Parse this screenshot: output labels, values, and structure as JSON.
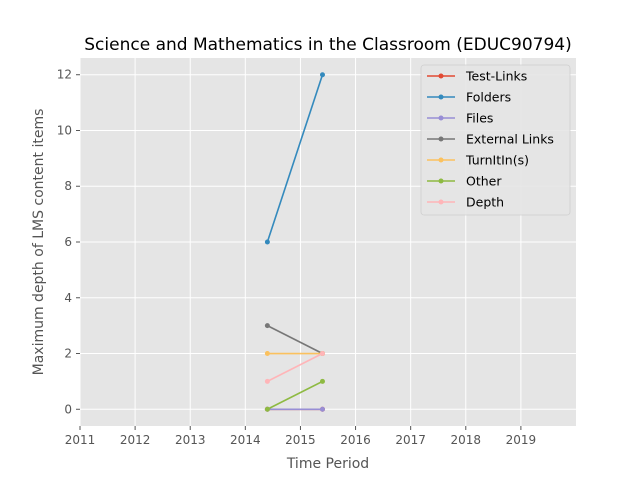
{
  "chart_data": {
    "type": "line",
    "title": "Science and Mathematics in the Classroom (EDUC90794)",
    "xlabel": "Time Period",
    "ylabel": "Maximum depth of LMS content items",
    "xlim": [
      2011,
      2020
    ],
    "ylim": [
      -0.6,
      12.6
    ],
    "xticks": [
      2011,
      2012,
      2013,
      2014,
      2015,
      2016,
      2017,
      2018,
      2019
    ],
    "yticks": [
      0,
      2,
      4,
      6,
      8,
      10,
      12
    ],
    "grid": true,
    "legend_position": "top-right",
    "series": [
      {
        "name": "Test-Links",
        "color": "#E24A33",
        "x": [
          2014.4,
          2015.4
        ],
        "y": [
          0,
          0
        ]
      },
      {
        "name": "Folders",
        "color": "#348ABD",
        "x": [
          2014.4,
          2015.4
        ],
        "y": [
          6,
          12
        ]
      },
      {
        "name": "Files",
        "color": "#988ED5",
        "x": [
          2014.4,
          2015.4
        ],
        "y": [
          0,
          0
        ]
      },
      {
        "name": "External Links",
        "color": "#777777",
        "x": [
          2014.4,
          2015.4
        ],
        "y": [
          3,
          2
        ]
      },
      {
        "name": "TurnItIn(s)",
        "color": "#FBC15E",
        "x": [
          2014.4,
          2015.4
        ],
        "y": [
          2,
          2
        ]
      },
      {
        "name": "Other",
        "color": "#8EBA42",
        "x": [
          2014.4,
          2015.4
        ],
        "y": [
          0,
          1
        ]
      },
      {
        "name": "Depth",
        "color": "#FFB5B8",
        "x": [
          2014.4,
          2015.4
        ],
        "y": [
          1,
          2
        ]
      }
    ]
  }
}
